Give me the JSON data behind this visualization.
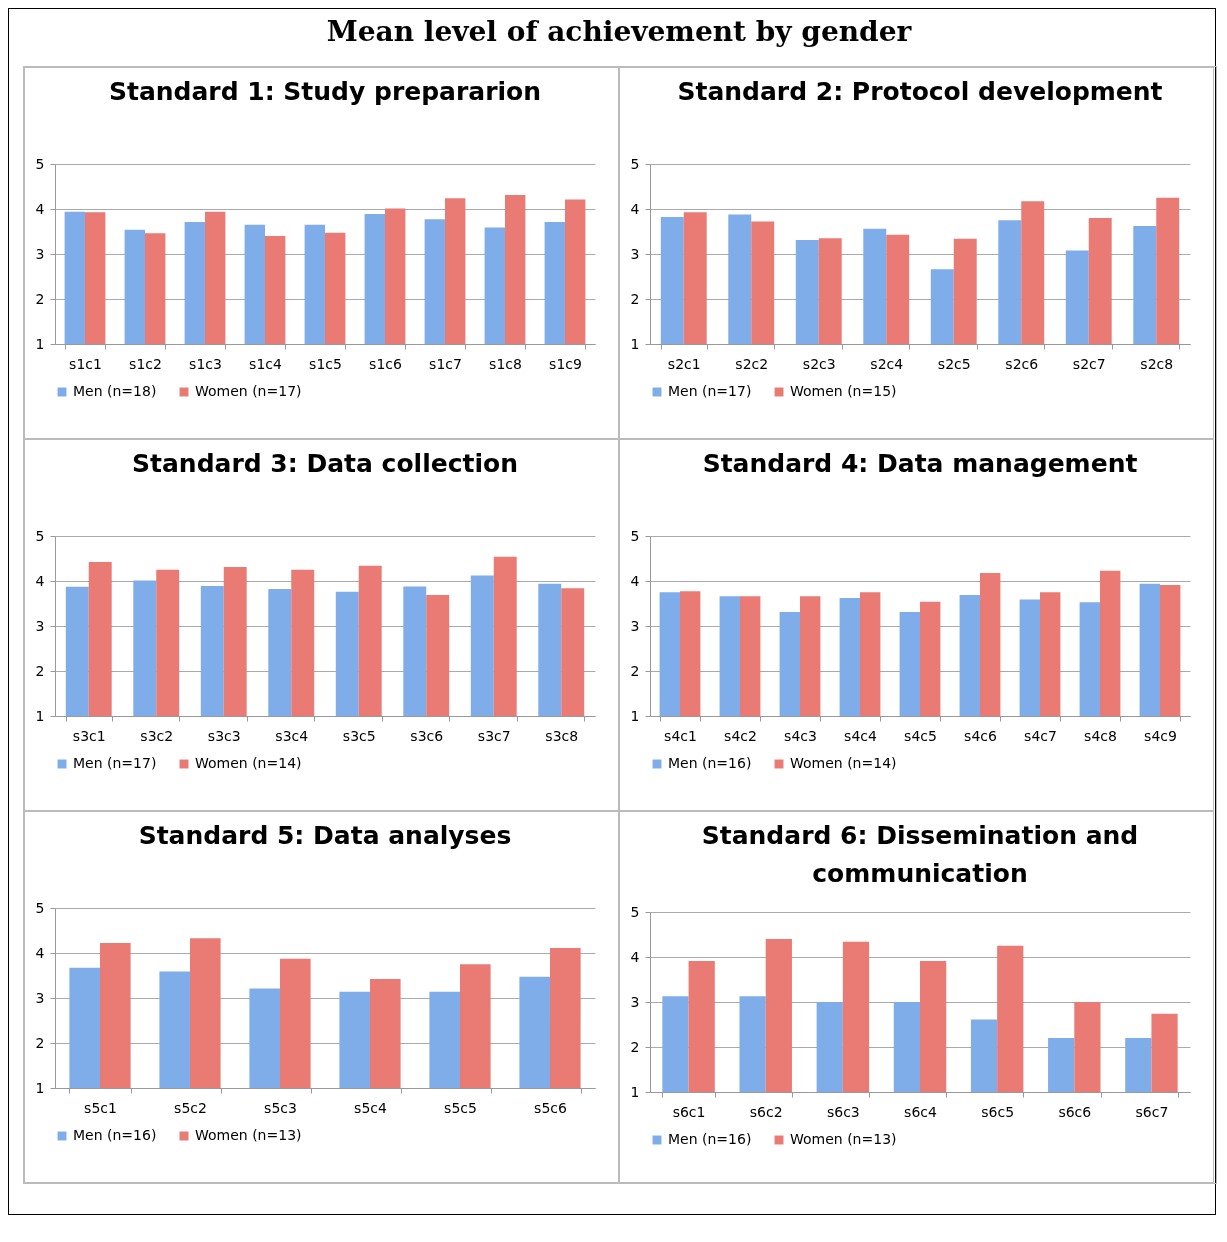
{
  "chart_data": [
    {
      "type": "other",
      "title": "Mean level of achievement by gender"
    },
    {
      "type": "bar",
      "title": "Standard 1: Study prepararion",
      "categories": [
        "s1c1",
        "s1c2",
        "s1c3",
        "s1c4",
        "s1c5",
        "s1c6",
        "s1c7",
        "s1c8",
        "s1c9"
      ],
      "series": [
        {
          "name": "Men (n=18)",
          "color": "#7fadea",
          "values": [
            3.94,
            3.54,
            3.71,
            3.65,
            3.65,
            3.89,
            3.77,
            3.59,
            3.71
          ]
        },
        {
          "name": "Women (n=17)",
          "color": "#ea7a74",
          "values": [
            3.93,
            3.46,
            3.94,
            3.4,
            3.47,
            4.01,
            4.24,
            4.31,
            4.21
          ]
        }
      ],
      "ylim": [
        1,
        5
      ],
      "yticks": [
        1,
        2,
        3,
        4,
        5
      ],
      "grid": "y",
      "legend": "bottom"
    },
    {
      "type": "bar",
      "title": "Standard 2: Protocol development",
      "categories": [
        "s2c1",
        "s2c2",
        "s2c3",
        "s2c4",
        "s2c5",
        "s2c6",
        "s2c7",
        "s2c8"
      ],
      "series": [
        {
          "name": "Men (n=17)",
          "color": "#7fadea",
          "values": [
            3.82,
            3.88,
            3.31,
            3.56,
            2.66,
            3.75,
            3.08,
            3.62
          ]
        },
        {
          "name": "Women (n=15)",
          "color": "#ea7a74",
          "values": [
            3.93,
            3.72,
            3.35,
            3.43,
            3.34,
            4.17,
            3.8,
            4.25
          ]
        }
      ],
      "ylim": [
        1,
        5
      ],
      "yticks": [
        1,
        2,
        3,
        4,
        5
      ],
      "grid": "y",
      "legend": "bottom"
    },
    {
      "type": "bar",
      "title": "Standard 3: Data collection",
      "categories": [
        "s3c1",
        "s3c2",
        "s3c3",
        "s3c4",
        "s3c5",
        "s3c6",
        "s3c7",
        "s3c8"
      ],
      "series": [
        {
          "name": "Men (n=17)",
          "color": "#7fadea",
          "values": [
            3.87,
            4.01,
            3.89,
            3.82,
            3.76,
            3.88,
            4.12,
            3.94
          ]
        },
        {
          "name": "Women (n=14)",
          "color": "#ea7a74",
          "values": [
            4.42,
            4.25,
            4.31,
            4.25,
            4.34,
            3.69,
            4.54,
            3.84
          ]
        }
      ],
      "ylim": [
        1,
        5
      ],
      "yticks": [
        1,
        2,
        3,
        4,
        5
      ],
      "grid": "y",
      "legend": "bottom"
    },
    {
      "type": "bar",
      "title": "Standard 4: Data management",
      "categories": [
        "s4c1",
        "s4c2",
        "s4c3",
        "s4c4",
        "s4c5",
        "s4c6",
        "s4c7",
        "s4c8",
        "s4c9"
      ],
      "series": [
        {
          "name": "Men (n=16)",
          "color": "#7fadea",
          "values": [
            3.75,
            3.66,
            3.31,
            3.62,
            3.31,
            3.69,
            3.59,
            3.53,
            3.94
          ]
        },
        {
          "name": "Women (n=14)",
          "color": "#ea7a74",
          "values": [
            3.77,
            3.66,
            3.66,
            3.75,
            3.54,
            4.18,
            3.75,
            4.23,
            3.91
          ]
        }
      ],
      "ylim": [
        1,
        5
      ],
      "yticks": [
        1,
        2,
        3,
        4,
        5
      ],
      "grid": "y",
      "legend": "bottom"
    },
    {
      "type": "bar",
      "title": "Standard 5: Data analyses",
      "categories": [
        "s5c1",
        "s5c2",
        "s5c3",
        "s5c4",
        "s5c5",
        "s5c6"
      ],
      "series": [
        {
          "name": "Men (n=16)",
          "color": "#7fadea",
          "values": [
            3.67,
            3.59,
            3.21,
            3.14,
            3.14,
            3.47
          ]
        },
        {
          "name": "Women (n=13)",
          "color": "#ea7a74",
          "values": [
            4.22,
            4.33,
            3.87,
            3.42,
            3.75,
            4.11
          ]
        }
      ],
      "ylim": [
        1,
        5
      ],
      "yticks": [
        1,
        2,
        3,
        4,
        5
      ],
      "grid": "y",
      "legend": "bottom"
    },
    {
      "type": "bar",
      "title": "Standard 6: Dissemination and communication",
      "categories": [
        "s6c1",
        "s6c2",
        "s6c3",
        "s6c4",
        "s6c5",
        "s6c6",
        "s6c7"
      ],
      "series": [
        {
          "name": "Men (n=16)",
          "color": "#7fadea",
          "values": [
            3.13,
            3.13,
            3.0,
            3.0,
            2.61,
            2.2,
            2.2
          ]
        },
        {
          "name": "Women (n=13)",
          "color": "#ea7a74",
          "values": [
            3.91,
            4.4,
            4.34,
            3.91,
            4.25,
            3.0,
            2.74
          ]
        }
      ],
      "ylim": [
        1,
        5
      ],
      "yticks": [
        1,
        2,
        3,
        4,
        5
      ],
      "grid": "y",
      "legend": "bottom"
    }
  ]
}
